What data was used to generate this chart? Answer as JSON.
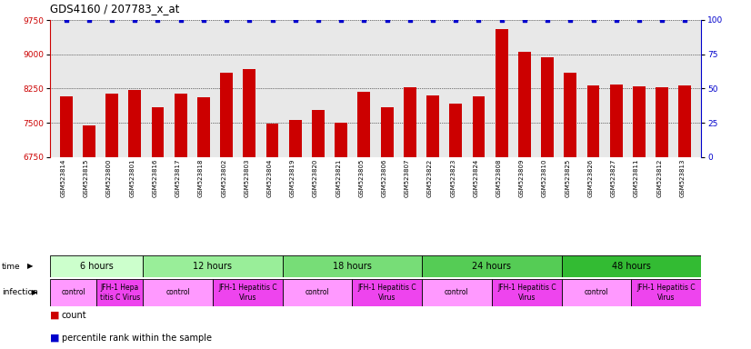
{
  "title": "GDS4160 / 207783_x_at",
  "samples": [
    "GSM523814",
    "GSM523815",
    "GSM523800",
    "GSM523801",
    "GSM523816",
    "GSM523817",
    "GSM523818",
    "GSM523802",
    "GSM523803",
    "GSM523804",
    "GSM523819",
    "GSM523820",
    "GSM523821",
    "GSM523805",
    "GSM523806",
    "GSM523807",
    "GSM523822",
    "GSM523823",
    "GSM523824",
    "GSM523808",
    "GSM523809",
    "GSM523810",
    "GSM523825",
    "GSM523826",
    "GSM523827",
    "GSM523811",
    "GSM523812",
    "GSM523813"
  ],
  "bar_values": [
    8080,
    7450,
    8150,
    8230,
    7840,
    8140,
    8060,
    8600,
    8680,
    7480,
    7560,
    7790,
    7510,
    8180,
    7840,
    8270,
    8100,
    7930,
    8080,
    9560,
    9060,
    8940,
    8600,
    8310,
    8330,
    8290,
    8270,
    8310
  ],
  "percentile_values": [
    100,
    100,
    100,
    100,
    100,
    100,
    100,
    100,
    100,
    100,
    100,
    100,
    100,
    100,
    100,
    100,
    100,
    100,
    100,
    100,
    100,
    100,
    100,
    100,
    100,
    100,
    100,
    100
  ],
  "ylim_left": [
    6750,
    9750
  ],
  "ylim_right": [
    0,
    100
  ],
  "yticks_left": [
    6750,
    7500,
    8250,
    9000,
    9750
  ],
  "yticks_right": [
    0,
    25,
    50,
    75,
    100
  ],
  "bar_color": "#cc0000",
  "percentile_color": "#0000cc",
  "time_groups": [
    {
      "label": "6 hours",
      "start": 0,
      "end": 4,
      "color": "#ccffcc"
    },
    {
      "label": "12 hours",
      "start": 4,
      "end": 10,
      "color": "#99ee99"
    },
    {
      "label": "18 hours",
      "start": 10,
      "end": 16,
      "color": "#77dd77"
    },
    {
      "label": "24 hours",
      "start": 16,
      "end": 22,
      "color": "#55cc55"
    },
    {
      "label": "48 hours",
      "start": 22,
      "end": 28,
      "color": "#33bb33"
    }
  ],
  "infection_groups": [
    {
      "label": "control",
      "start": 0,
      "end": 2,
      "is_ctrl": true
    },
    {
      "label": "JFH-1 Hepa\ntitis C Virus",
      "start": 2,
      "end": 4,
      "is_ctrl": false
    },
    {
      "label": "control",
      "start": 4,
      "end": 7,
      "is_ctrl": true
    },
    {
      "label": "JFH-1 Hepatitis C\nVirus",
      "start": 7,
      "end": 10,
      "is_ctrl": false
    },
    {
      "label": "control",
      "start": 10,
      "end": 13,
      "is_ctrl": true
    },
    {
      "label": "JFH-1 Hepatitis C\nVirus",
      "start": 13,
      "end": 16,
      "is_ctrl": false
    },
    {
      "label": "control",
      "start": 16,
      "end": 19,
      "is_ctrl": true
    },
    {
      "label": "JFH-1 Hepatitis C\nVirus",
      "start": 19,
      "end": 22,
      "is_ctrl": false
    },
    {
      "label": "control",
      "start": 22,
      "end": 25,
      "is_ctrl": true
    },
    {
      "label": "JFH-1 Hepatitis C\nVirus",
      "start": 25,
      "end": 28,
      "is_ctrl": false
    }
  ],
  "infection_ctrl_color": "#ff99ff",
  "infection_jfh_color": "#ee44ee",
  "plot_bg_color": "#e8e8e8",
  "bg_color": "#ffffff",
  "legend_count_color": "#cc0000",
  "legend_pct_color": "#0000cc"
}
